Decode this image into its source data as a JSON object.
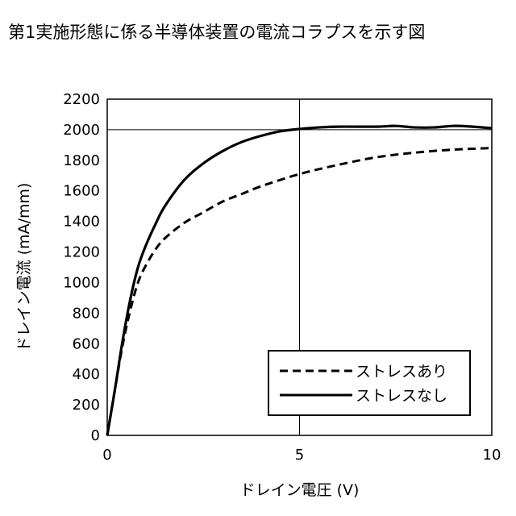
{
  "title": "第1実施形態に係る半導体装置の電流コラプスを示す図",
  "chart_data": {
    "type": "line",
    "xlabel": "ドレイン電圧 (V)",
    "ylabel": "ドレイン電流 (mA/mm)",
    "xlim": [
      0,
      10
    ],
    "ylim": [
      0,
      2200
    ],
    "x_ticks": [
      0,
      5,
      10
    ],
    "y_ticks": [
      0,
      200,
      400,
      600,
      800,
      1000,
      1200,
      1400,
      1600,
      1800,
      2000,
      2200
    ],
    "x_gridlines": [
      5
    ],
    "y_gridlines": [
      2000
    ],
    "legend_position": "bottom-right",
    "series": [
      {
        "name": "ストレスあり",
        "style": "dashed",
        "x": [
          0,
          0.2,
          0.4,
          0.6,
          0.8,
          1.0,
          1.25,
          1.5,
          2.0,
          2.5,
          3.0,
          3.5,
          4.0,
          5.0,
          6.0,
          7.0,
          8.0,
          9.0,
          10.0
        ],
        "y": [
          0,
          300,
          590,
          820,
          1000,
          1110,
          1215,
          1290,
          1390,
          1460,
          1530,
          1580,
          1630,
          1710,
          1770,
          1820,
          1850,
          1870,
          1880
        ]
      },
      {
        "name": "ストレスなし",
        "style": "solid",
        "x": [
          0,
          0.2,
          0.4,
          0.6,
          0.8,
          1.0,
          1.25,
          1.5,
          2.0,
          2.5,
          3.0,
          3.5,
          4.0,
          4.5,
          5.0,
          5.5,
          6.0,
          7.0,
          7.5,
          8.0,
          8.5,
          9.0,
          9.5,
          10.0
        ],
        "y": [
          0,
          300,
          620,
          890,
          1100,
          1240,
          1380,
          1500,
          1670,
          1780,
          1860,
          1920,
          1960,
          1990,
          2005,
          2015,
          2020,
          2020,
          2025,
          2015,
          2015,
          2025,
          2020,
          2010
        ]
      }
    ]
  }
}
